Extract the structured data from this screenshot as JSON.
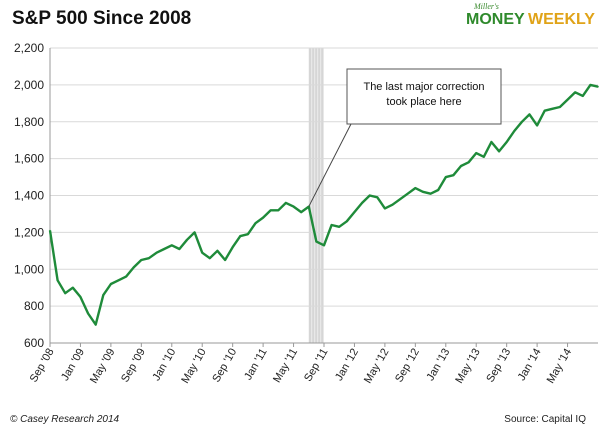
{
  "colors": {
    "series": "#1f8b3a",
    "grid": "#d9d9d9",
    "shade": "#c8c8c8"
  },
  "branding": {
    "tagline": "Miller's",
    "word1": "MONEY",
    "word2": "WEEKLY"
  },
  "footer": {
    "left": "© Casey Research 2014",
    "right": "Source: Capital IQ"
  },
  "chart_data": {
    "type": "line",
    "title": "S&P 500 Since 2008",
    "xlabel": "",
    "ylabel": "",
    "ylim": [
      600,
      2200
    ],
    "yticks": [
      600,
      800,
      1000,
      1200,
      1400,
      1600,
      1800,
      2000,
      2200
    ],
    "ytick_labels": [
      "600",
      "800",
      "1,000",
      "1,200",
      "1,400",
      "1,600",
      "1,800",
      "2,000",
      "2,200"
    ],
    "xlim": [
      "2008-09",
      "2014-09"
    ],
    "xtick_labels": [
      "Sep '08",
      "Jan '09",
      "May '09",
      "Sep '09",
      "Jan '10",
      "May '10",
      "Sep '10",
      "Jan '11",
      "May '11",
      "Sep '11",
      "Jan '12",
      "May '12",
      "Sep '12",
      "Jan '13",
      "May '13",
      "Sep '13",
      "Jan '14",
      "May '14"
    ],
    "grid": "horizontal",
    "highlight_range": [
      "2011-07",
      "2011-09"
    ],
    "annotation": {
      "lines": [
        "The last major correction",
        "took place here"
      ],
      "target": [
        "2011-07",
        1340
      ]
    },
    "series": [
      {
        "x": [
          "2008-09",
          "2008-10",
          "2008-11",
          "2008-12",
          "2009-01",
          "2009-02",
          "2009-03",
          "2009-04",
          "2009-05",
          "2009-06",
          "2009-07",
          "2009-08",
          "2009-09",
          "2009-10",
          "2009-11",
          "2009-12",
          "2010-01",
          "2010-02",
          "2010-03",
          "2010-04",
          "2010-05",
          "2010-06",
          "2010-07",
          "2010-08",
          "2010-09",
          "2010-10",
          "2010-11",
          "2010-12",
          "2011-01",
          "2011-02",
          "2011-03",
          "2011-04",
          "2011-05",
          "2011-06",
          "2011-07",
          "2011-08",
          "2011-09",
          "2011-10",
          "2011-11",
          "2011-12",
          "2012-01",
          "2012-02",
          "2012-03",
          "2012-04",
          "2012-05",
          "2012-06",
          "2012-07",
          "2012-08",
          "2012-09",
          "2012-10",
          "2012-11",
          "2012-12",
          "2013-01",
          "2013-02",
          "2013-03",
          "2013-04",
          "2013-05",
          "2013-06",
          "2013-07",
          "2013-08",
          "2013-09",
          "2013-10",
          "2013-11",
          "2013-12",
          "2014-01",
          "2014-02",
          "2014-03",
          "2014-04",
          "2014-05",
          "2014-06",
          "2014-07",
          "2014-08",
          "2014-09"
        ],
        "values": [
          1210,
          940,
          870,
          900,
          850,
          760,
          700,
          860,
          920,
          940,
          960,
          1010,
          1050,
          1060,
          1090,
          1110,
          1130,
          1110,
          1160,
          1200,
          1090,
          1060,
          1100,
          1050,
          1120,
          1180,
          1190,
          1250,
          1280,
          1320,
          1320,
          1360,
          1340,
          1310,
          1340,
          1150,
          1130,
          1240,
          1230,
          1260,
          1310,
          1360,
          1400,
          1390,
          1330,
          1350,
          1380,
          1410,
          1440,
          1420,
          1410,
          1430,
          1500,
          1510,
          1560,
          1580,
          1630,
          1610,
          1690,
          1640,
          1690,
          1750,
          1800,
          1840,
          1780,
          1860,
          1870,
          1880,
          1920,
          1960,
          1940,
          2000,
          1990
        ]
      }
    ]
  }
}
